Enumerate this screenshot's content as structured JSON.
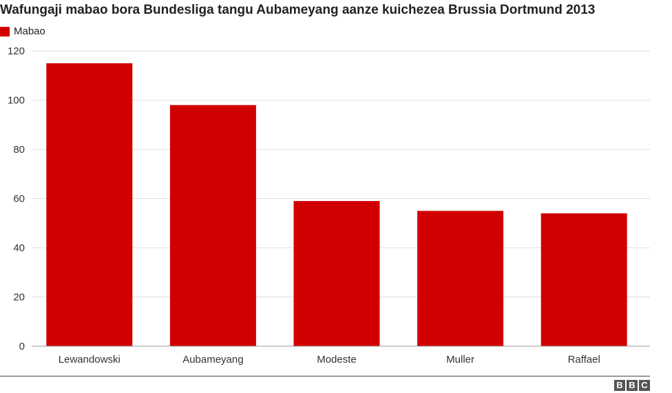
{
  "chart_data": {
    "type": "bar",
    "title": "Wafungaji mabao bora Bundesliga tangu Aubameyang aanze kuichezea Brussia Dortmund 2013",
    "categories": [
      "Lewandowski",
      "Aubameyang",
      "Modeste",
      "Muller",
      "Raffael"
    ],
    "series": [
      {
        "name": "Mabao",
        "values": [
          115,
          98,
          59,
          55,
          54
        ]
      }
    ],
    "xlabel": "",
    "ylabel": "",
    "ylim": [
      0,
      120
    ],
    "yticks": [
      0,
      20,
      40,
      60,
      80,
      100,
      120
    ],
    "grid": true,
    "legend_position": "top-left",
    "bar_color": "#d10000"
  },
  "footer": {
    "logo_letters": [
      "B",
      "B",
      "C"
    ]
  }
}
